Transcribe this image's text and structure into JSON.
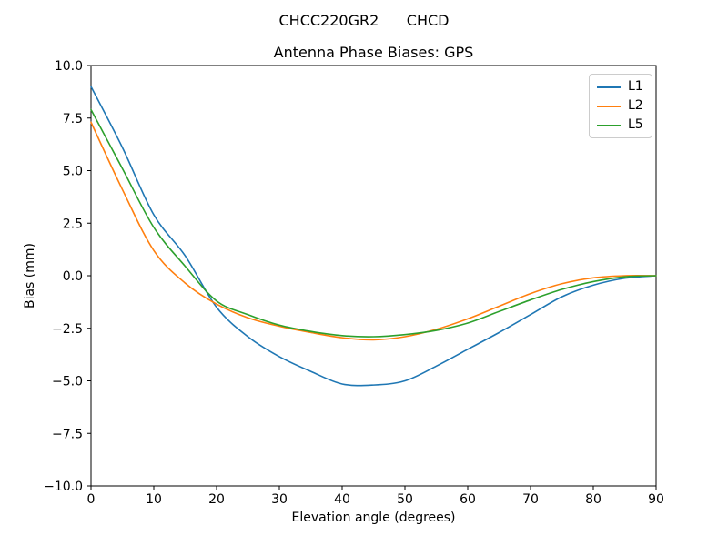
{
  "figure": {
    "suptitle": "CHCC220GR2      CHCD"
  },
  "chart_data": {
    "type": "line",
    "title": "Antenna Phase Biases: GPS",
    "xlabel": "Elevation angle (degrees)",
    "ylabel": "Bias (mm)",
    "xlim": [
      0,
      90
    ],
    "ylim": [
      -10,
      10
    ],
    "grid": false,
    "legend_position": "upper right",
    "axis_color": "#000000",
    "x": [
      0,
      5,
      10,
      15,
      20,
      25,
      30,
      35,
      40,
      45,
      50,
      55,
      60,
      65,
      70,
      75,
      80,
      85,
      90
    ],
    "series": [
      {
        "name": "L1",
        "color": "#1f77b4",
        "values": [
          9.0,
          6.1,
          2.9,
          0.95,
          -1.5,
          -2.9,
          -3.85,
          -4.55,
          -5.15,
          -5.2,
          -5.0,
          -4.3,
          -3.5,
          -2.7,
          -1.85,
          -1.0,
          -0.45,
          -0.12,
          0.0
        ]
      },
      {
        "name": "L2",
        "color": "#ff7f0e",
        "values": [
          7.3,
          4.1,
          1.2,
          -0.35,
          -1.35,
          -2.0,
          -2.4,
          -2.7,
          -2.95,
          -3.05,
          -2.9,
          -2.55,
          -2.05,
          -1.45,
          -0.85,
          -0.38,
          -0.1,
          0.0,
          0.0
        ]
      },
      {
        "name": "L5",
        "color": "#2ca02c",
        "values": [
          7.9,
          5.1,
          2.3,
          0.45,
          -1.2,
          -1.85,
          -2.35,
          -2.65,
          -2.85,
          -2.9,
          -2.8,
          -2.6,
          -2.25,
          -1.7,
          -1.15,
          -0.65,
          -0.28,
          -0.05,
          0.0
        ]
      }
    ],
    "xtick_values": [
      0,
      10,
      20,
      30,
      40,
      50,
      60,
      70,
      80,
      90
    ],
    "xtick_labels": [
      "0",
      "10",
      "20",
      "30",
      "40",
      "50",
      "60",
      "70",
      "80",
      "90"
    ],
    "ytick_values": [
      10,
      7.5,
      5,
      2.5,
      0,
      -2.5,
      -5,
      -7.5,
      -10
    ],
    "ytick_labels": [
      "10.0",
      "7.5",
      "5.0",
      "2.5",
      "0.0",
      "−2.5",
      "−5.0",
      "−7.5",
      "−10.0"
    ]
  }
}
